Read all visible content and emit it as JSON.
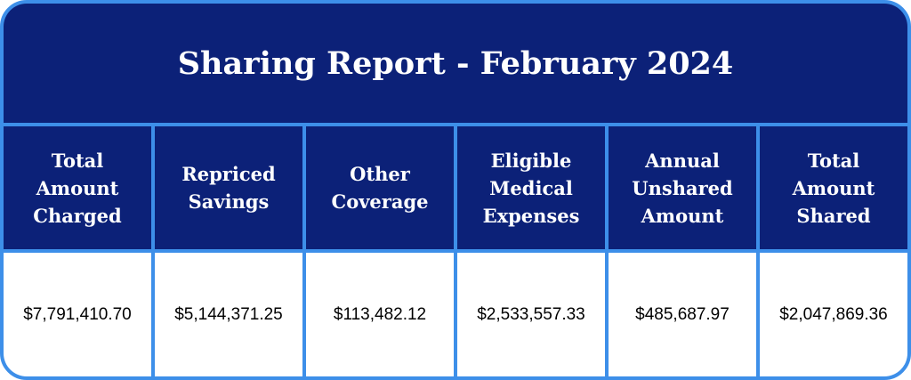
{
  "title": "Sharing Report - February 2024",
  "table": {
    "columns": [
      "Total Amount Charged",
      "Repriced Savings",
      "Other Coverage",
      "Eligible Medical Expenses",
      "Annual Unshared Amount",
      "Total Amount Shared"
    ],
    "rows": [
      [
        "$7,791,410.70",
        "$5,144,371.25",
        "$113,482.12",
        "$2,533,557.33",
        "$485,687.97",
        "$2,047,869.36"
      ]
    ]
  }
}
